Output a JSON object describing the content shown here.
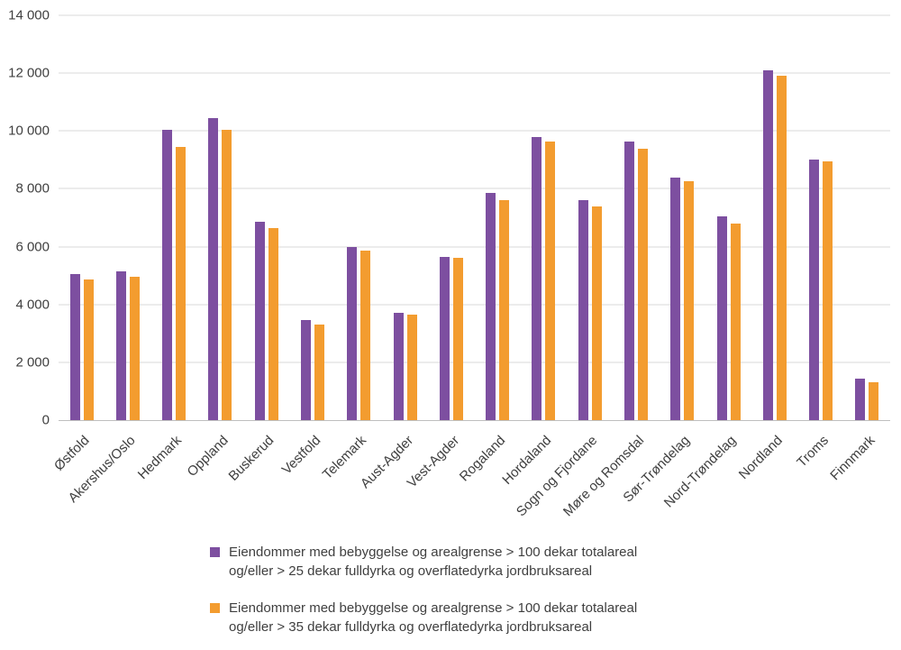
{
  "chart_data": {
    "type": "bar",
    "title": "",
    "xlabel": "",
    "ylabel": "",
    "ylim": [
      0,
      14000
    ],
    "ytick_step": 2000,
    "grid": true,
    "legend_position": "bottom",
    "categories": [
      "Østfold",
      "Akershus/Oslo",
      "Hedmark",
      "Oppland",
      "Buskerud",
      "Vestfold",
      "Telemark",
      "Aust-Agder",
      "Vest-Agder",
      "Rogaland",
      "Hordaland",
      "Sogn og Fjordane",
      "Møre og Romsdal",
      "Sør-Trøndelag",
      "Nord-Trøndelag",
      "Nordland",
      "Troms",
      "Finnmark"
    ],
    "series": [
      {
        "name": "Eiendommer med bebyggelse og arealgrense > 100 dekar totalareal\nog/eller > 25 dekar fulldyrka og overflatedyrka jordbruksareal",
        "color": "#7d4fa0",
        "values": [
          5050,
          5150,
          10050,
          10450,
          6850,
          3450,
          6000,
          3700,
          5650,
          7850,
          9800,
          7600,
          9650,
          8400,
          7050,
          12100,
          9000,
          1450
        ]
      },
      {
        "name": "Eiendommer med bebyggelse og arealgrense > 100 dekar totalareal\nog/eller > 35 dekar fulldyrka og overflatedyrka jordbruksareal",
        "color": "#f39c2f",
        "values": [
          4850,
          4950,
          9450,
          10050,
          6650,
          3300,
          5850,
          3650,
          5600,
          7600,
          9650,
          7400,
          9400,
          8250,
          6800,
          11900,
          8950,
          1300
        ]
      }
    ],
    "ytick_labels": [
      "0",
      "2 000",
      "4 000",
      "6 000",
      "8 000",
      "10 000",
      "12 000",
      "14 000"
    ]
  }
}
